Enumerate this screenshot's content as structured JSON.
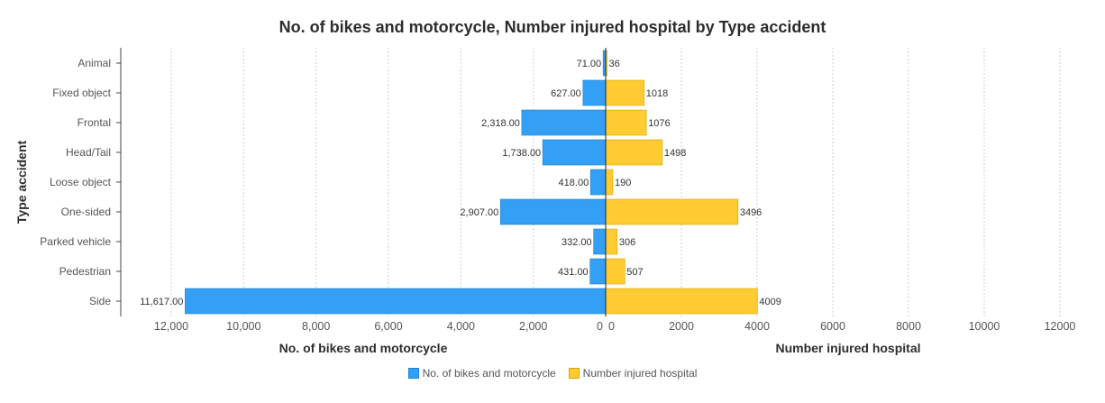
{
  "chart_data": {
    "type": "bar",
    "orientation": "horizontal-butterfly",
    "title": "No. of bikes and motorcycle, Number injured hospital by Type accident",
    "ylabel": "Type accident",
    "categories": [
      "Animal",
      "Fixed object",
      "Frontal",
      "Head/Tail",
      "Loose object",
      "One-sided",
      "Parked vehicle",
      "Pedestrian",
      "Side"
    ],
    "series": [
      {
        "name": "No. of bikes and motorcycle",
        "side": "left",
        "color": "#33a0f5",
        "values": [
          71,
          627,
          2318,
          1738,
          418,
          2907,
          332,
          431,
          11617
        ],
        "value_labels": [
          "71.00",
          "627.00",
          "2,318.00",
          "1,738.00",
          "418.00",
          "2,907.00",
          "332.00",
          "431.00",
          "11,617.00"
        ],
        "axis_label": "No. of bikes and motorcycle",
        "xlim": [
          0,
          13000
        ],
        "ticks": [
          12000,
          10000,
          8000,
          6000,
          4000,
          2000,
          0
        ],
        "tick_labels": [
          "12,000",
          "10,000",
          "8,000",
          "6,000",
          "4,000",
          "2,000",
          "0"
        ]
      },
      {
        "name": "Number injured hospital",
        "side": "right",
        "color": "#ffcb33",
        "values": [
          36,
          1018,
          1076,
          1498,
          190,
          3496,
          306,
          507,
          4009
        ],
        "value_labels": [
          "36",
          "1018",
          "1076",
          "1498",
          "190",
          "3496",
          "306",
          "507",
          "4009"
        ],
        "axis_label": "Number injured hospital",
        "xlim": [
          0,
          12000
        ],
        "ticks": [
          0,
          2000,
          4000,
          6000,
          8000,
          10000,
          12000
        ],
        "tick_labels": [
          "0",
          "2000",
          "4000",
          "6000",
          "8000",
          "10000",
          "12000"
        ]
      }
    ],
    "grid": true,
    "legend": "bottom"
  }
}
